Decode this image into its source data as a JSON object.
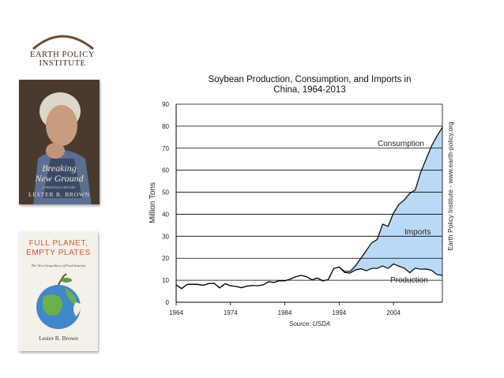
{
  "logo": {
    "text": "EARTH POLICY INSTITUTE"
  },
  "books": [
    {
      "title_line1": "Breaking",
      "title_line2": "New Ground",
      "subtitle": "A PERSONAL HISTORY",
      "author": "LESTER R. BROWN"
    },
    {
      "title_line1": "FULL PLANET,",
      "title_line2": "EMPTY PLATES",
      "subtitle": "The New Geopolitics of Food Scarcity",
      "author": "Lester R. Brown"
    }
  ],
  "chart_data": {
    "type": "area",
    "title_line1": "Soybean Production, Consumption, and Imports in",
    "title_line2": "China, 1964-2013",
    "ylabel": "Million Tons",
    "source": "Source: USDA",
    "side_credit": "Earth Policy Institute - www.earth-policy.org",
    "xlim": [
      1964,
      2013
    ],
    "ylim": [
      0,
      90
    ],
    "x_ticks": [
      1964,
      1974,
      1984,
      1994,
      2004
    ],
    "y_ticks": [
      0,
      10,
      20,
      30,
      40,
      50,
      60,
      70,
      80,
      90
    ],
    "grid": "horizontal",
    "fill_color": "#b9d9f7",
    "years": [
      1964,
      1965,
      1966,
      1967,
      1968,
      1969,
      1970,
      1971,
      1972,
      1973,
      1974,
      1975,
      1976,
      1977,
      1978,
      1979,
      1980,
      1981,
      1982,
      1983,
      1984,
      1985,
      1986,
      1987,
      1988,
      1989,
      1990,
      1991,
      1992,
      1993,
      1994,
      1995,
      1996,
      1997,
      1998,
      1999,
      2000,
      2001,
      2002,
      2003,
      2004,
      2005,
      2006,
      2007,
      2008,
      2009,
      2010,
      2011,
      2012,
      2013
    ],
    "series": [
      {
        "name": "Production",
        "values": [
          7.9,
          6.2,
          8.1,
          8.2,
          8.1,
          7.7,
          8.5,
          8.6,
          6.5,
          8.4,
          7.5,
          7.2,
          6.6,
          7.3,
          7.6,
          7.5,
          7.9,
          9.3,
          9.0,
          9.8,
          9.7,
          10.5,
          11.6,
          12.2,
          11.6,
          10.2,
          11.0,
          9.7,
          10.3,
          15.3,
          16.0,
          13.5,
          13.2,
          14.7,
          15.2,
          14.3,
          15.4,
          15.4,
          16.5,
          15.4,
          17.4,
          16.4,
          15.5,
          13.4,
          15.5,
          15.0,
          15.1,
          14.5,
          12.6,
          12.2
        ]
      },
      {
        "name": "Consumption",
        "values": [
          7.9,
          6.2,
          8.1,
          8.2,
          8.1,
          7.7,
          8.5,
          8.6,
          6.5,
          8.4,
          7.5,
          7.2,
          6.6,
          7.3,
          7.6,
          7.5,
          7.9,
          9.3,
          9.0,
          9.8,
          9.7,
          10.5,
          11.6,
          12.2,
          11.6,
          10.2,
          11.0,
          9.7,
          10.3,
          15.3,
          16.0,
          14.0,
          14.0,
          16.5,
          20.0,
          23.5,
          27.0,
          28.5,
          35.5,
          34.5,
          40.5,
          44.5,
          46.5,
          49.5,
          51.0,
          59.0,
          65.0,
          71.0,
          75.5,
          79.5
        ]
      }
    ],
    "labels": {
      "consumption": "Consumption",
      "imports": "Imports",
      "production": "Production"
    }
  }
}
